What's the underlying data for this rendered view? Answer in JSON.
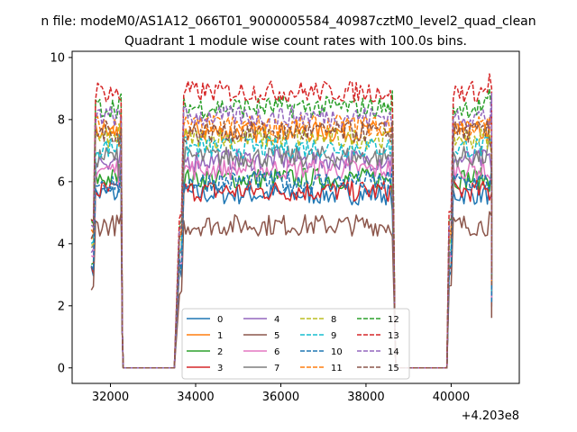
{
  "suptitle": "n file: modeM0/AS1A12_066T01_9000005584_40987cztM0_level2_quad_clean",
  "chart_data": {
    "type": "line",
    "title": "Quadrant 1 module wise count rates with 100.0s bins.",
    "xlabel": "",
    "ylabel": "",
    "x_offset_label": "+4.203e8",
    "xlim": [
      31100,
      41600
    ],
    "ylim": [
      -0.5,
      10.2
    ],
    "x_ticks": [
      32000,
      34000,
      36000,
      38000,
      40000
    ],
    "x_tick_labels": [
      "32000",
      "34000",
      "36000",
      "38000",
      "40000"
    ],
    "y_ticks": [
      0,
      2,
      4,
      6,
      8,
      10
    ],
    "y_tick_labels": [
      "0",
      "2",
      "4",
      "6",
      "8",
      "10"
    ],
    "segments": [
      {
        "start": 31550,
        "end": 32250
      },
      {
        "start": 33620,
        "end": 38650
      },
      {
        "start": 39950,
        "end": 40950
      }
    ],
    "zero_intervals": [
      [
        32300,
        33580
      ],
      [
        38700,
        39900
      ]
    ],
    "legend": {
      "placement": "lower center",
      "columns": 4
    },
    "series": [
      {
        "name": "0",
        "color": "#1f77b4",
        "dash": "solid",
        "level": 5.6
      },
      {
        "name": "1",
        "color": "#ff7f0e",
        "dash": "solid",
        "level": 7.6
      },
      {
        "name": "2",
        "color": "#2ca02c",
        "dash": "solid",
        "level": 6.1
      },
      {
        "name": "3",
        "color": "#d62728",
        "dash": "solid",
        "level": 5.7
      },
      {
        "name": "4",
        "color": "#9467bd",
        "dash": "solid",
        "level": 6.7
      },
      {
        "name": "5",
        "color": "#8c564b",
        "dash": "solid",
        "level": 4.6
      },
      {
        "name": "6",
        "color": "#e377c2",
        "dash": "solid",
        "level": 6.4
      },
      {
        "name": "7",
        "color": "#7f7f7f",
        "dash": "solid",
        "level": 6.8
      },
      {
        "name": "8",
        "color": "#bcbd22",
        "dash": "dashed",
        "level": 7.4
      },
      {
        "name": "9",
        "color": "#17becf",
        "dash": "dashed",
        "level": 7.1
      },
      {
        "name": "10",
        "color": "#1f77b4",
        "dash": "dashed",
        "level": 6.0
      },
      {
        "name": "11",
        "color": "#ff7f0e",
        "dash": "dashed",
        "level": 7.8
      },
      {
        "name": "12",
        "color": "#2ca02c",
        "dash": "dashed",
        "level": 8.4
      },
      {
        "name": "13",
        "color": "#d62728",
        "dash": "dashed",
        "level": 8.9
      },
      {
        "name": "14",
        "color": "#9467bd",
        "dash": "dashed",
        "level": 8.1
      },
      {
        "name": "15",
        "color": "#8c564b",
        "dash": "dashed",
        "level": 7.6
      }
    ]
  }
}
